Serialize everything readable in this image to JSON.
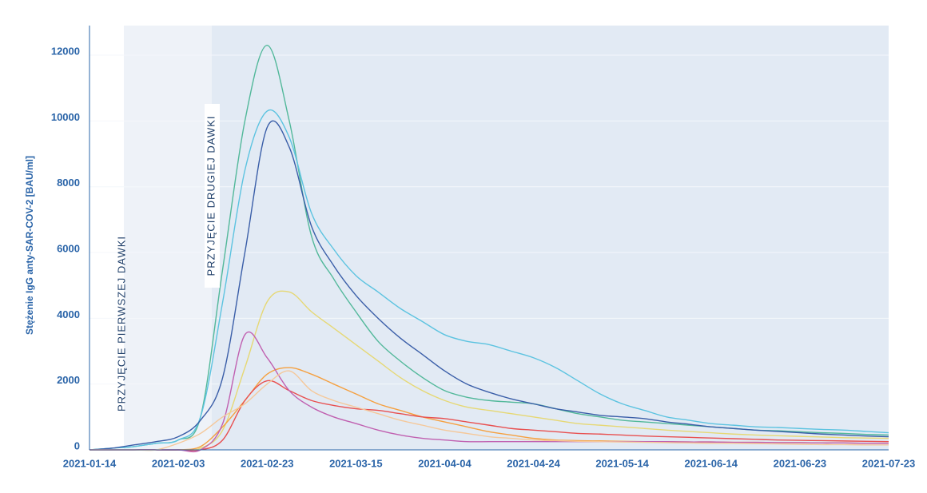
{
  "chart_data": {
    "type": "line",
    "y_label": "Stężenie IgG anty-SAR-COV-2 [BAU/ml]",
    "annotations": [
      "PRZYJĘCIE PIERWSZEJ DAWKI",
      "PRZYJĘCIE DRUGIEJ DAWKI"
    ],
    "categories": [
      "2021-01-14",
      null,
      null,
      null,
      "2021-02-03",
      null,
      null,
      null,
      "2021-02-23",
      null,
      null,
      null,
      "2021-03-15",
      null,
      null,
      null,
      "2021-04-04",
      null,
      null,
      null,
      "2021-04-24",
      null,
      null,
      null,
      "2021-05-14",
      null,
      null,
      null,
      "2021-06-14",
      null,
      null,
      null,
      "2021-06-23",
      null,
      null,
      null,
      "2021-07-23"
    ],
    "ylim": [
      0,
      12900
    ],
    "yticks": [
      0,
      2000,
      4000,
      6000,
      8000,
      10000,
      12000
    ],
    "grid": true,
    "series": [
      {
        "color": "#52b89a",
        "values": [
          0,
          50,
          100,
          200,
          300,
          1000,
          5500,
          10000,
          12300,
          10000,
          6500,
          5200,
          4200,
          3300,
          2700,
          2200,
          1800,
          1600,
          1500,
          1450,
          1400,
          1250,
          1100,
          1000,
          900,
          850,
          800,
          750,
          700,
          650,
          600,
          580,
          550,
          520,
          500,
          470,
          450
        ]
      },
      {
        "color": "#5cc3e0",
        "values": [
          0,
          50,
          100,
          200,
          300,
          1000,
          4500,
          8500,
          10300,
          9500,
          7200,
          6100,
          5300,
          4800,
          4300,
          3900,
          3500,
          3300,
          3200,
          3000,
          2800,
          2500,
          2100,
          1700,
          1400,
          1200,
          1000,
          900,
          800,
          750,
          700,
          680,
          650,
          620,
          600,
          560,
          520
        ]
      },
      {
        "color": "#3a5ea8",
        "values": [
          0,
          50,
          150,
          250,
          400,
          900,
          2200,
          6000,
          9800,
          9200,
          6800,
          5600,
          4700,
          4000,
          3400,
          2900,
          2400,
          2000,
          1750,
          1550,
          1400,
          1250,
          1150,
          1050,
          1000,
          950,
          850,
          780,
          700,
          650,
          600,
          560,
          520,
          480,
          450,
          420,
          400
        ]
      },
      {
        "color": "#e6d874",
        "values": [
          0,
          0,
          0,
          0,
          0,
          50,
          600,
          2500,
          4500,
          4800,
          4200,
          3700,
          3200,
          2700,
          2200,
          1800,
          1500,
          1300,
          1200,
          1100,
          1000,
          900,
          800,
          750,
          700,
          650,
          600,
          560,
          520,
          480,
          450,
          430,
          410,
          390,
          370,
          360,
          350
        ]
      },
      {
        "color": "#f5a040",
        "values": [
          0,
          0,
          0,
          0,
          0,
          100,
          700,
          1500,
          2300,
          2500,
          2300,
          2000,
          1700,
          1400,
          1200,
          1000,
          850,
          700,
          550,
          450,
          350,
          300,
          280,
          270,
          260,
          250,
          250,
          240,
          240,
          230,
          230,
          220,
          220,
          210,
          210,
          200,
          200
        ]
      },
      {
        "color": "#e85050",
        "values": [
          0,
          0,
          0,
          0,
          0,
          0,
          300,
          1500,
          2100,
          1800,
          1500,
          1350,
          1250,
          1200,
          1100,
          1000,
          950,
          850,
          750,
          650,
          600,
          550,
          500,
          480,
          450,
          420,
          400,
          380,
          360,
          340,
          320,
          300,
          290,
          280,
          270,
          260,
          250
        ]
      },
      {
        "color": "#c060b0",
        "values": [
          0,
          0,
          0,
          0,
          0,
          0,
          800,
          3500,
          2800,
          1800,
          1300,
          1000,
          800,
          600,
          450,
          350,
          300,
          250,
          250,
          250,
          250,
          250,
          250,
          250,
          250,
          250,
          250,
          240,
          240,
          230,
          230,
          220,
          220,
          210,
          210,
          200,
          200
        ]
      },
      {
        "color": "#f5c89a",
        "values": [
          0,
          0,
          0,
          0,
          200,
          500,
          1000,
          1400,
          2000,
          2400,
          1800,
          1500,
          1300,
          1100,
          900,
          750,
          600,
          500,
          400,
          350,
          300,
          280,
          260,
          250,
          240,
          230,
          220,
          210,
          200,
          200,
          190,
          180,
          170,
          160,
          160,
          150,
          150
        ]
      }
    ]
  }
}
